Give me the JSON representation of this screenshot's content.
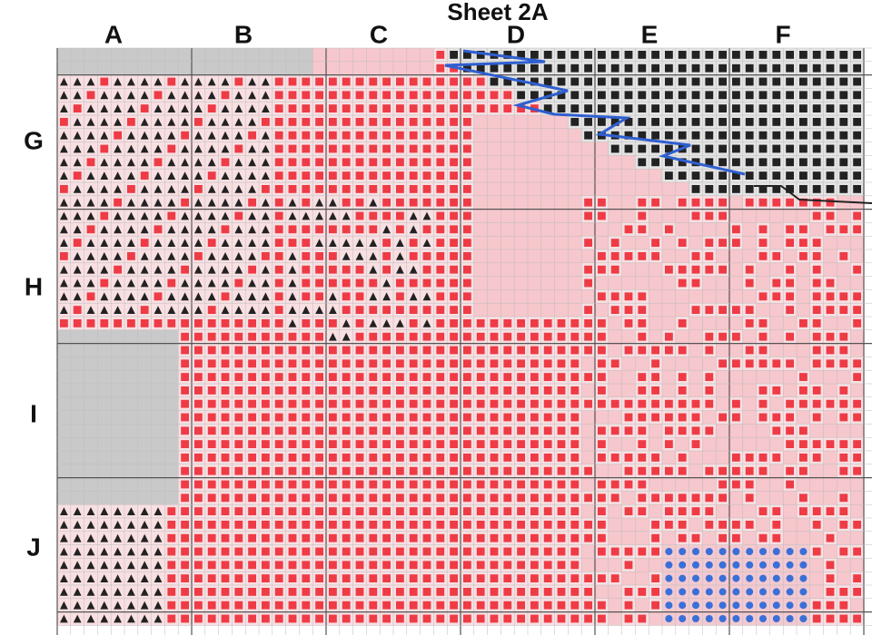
{
  "header": {
    "title": "Sheet 2A"
  },
  "columns": [
    "A",
    "B",
    "C",
    "D",
    "E",
    "F"
  ],
  "rows": [
    "G",
    "H",
    "I",
    "J"
  ]
}
